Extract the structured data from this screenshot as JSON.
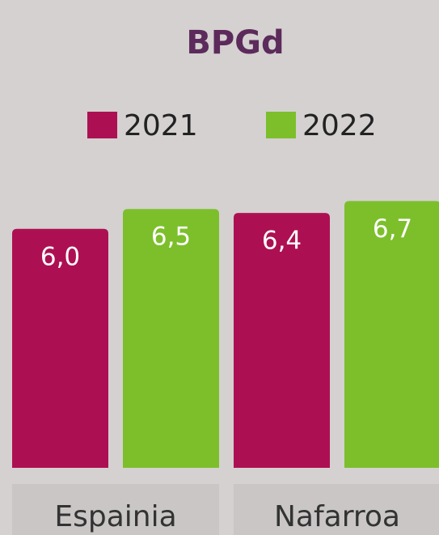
{
  "chart_data": {
    "type": "bar",
    "title": "BPGd",
    "categories": [
      "Espainia",
      "Nafarroa"
    ],
    "series": [
      {
        "name": "2021",
        "color": "#ad1052",
        "values": [
          6.0,
          6.4
        ],
        "value_labels": [
          "6,0",
          "6,4"
        ]
      },
      {
        "name": "2022",
        "color": "#7cbf2b",
        "values": [
          6.5,
          6.7
        ],
        "value_labels": [
          "6,5",
          "6,7"
        ]
      }
    ],
    "legend": "top"
  }
}
